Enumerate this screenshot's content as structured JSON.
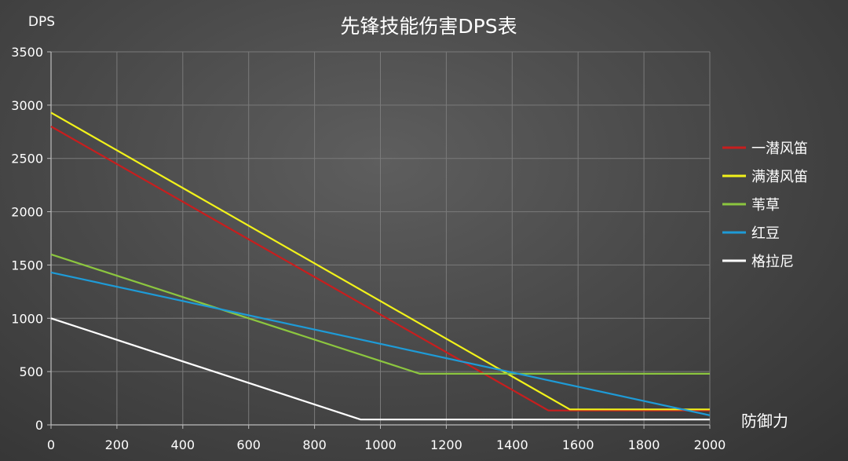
{
  "chart_data": {
    "type": "line",
    "title": "先锋技能伤害DPS表",
    "ylabel": "DPS",
    "xlabel": "防御力",
    "xlim": [
      0,
      2000
    ],
    "ylim": [
      0,
      3500
    ],
    "x_ticks": [
      0,
      200,
      400,
      600,
      800,
      1000,
      1200,
      1400,
      1600,
      1800,
      2000
    ],
    "y_ticks": [
      0,
      500,
      1000,
      1500,
      2000,
      2500,
      3000,
      3500
    ],
    "grid": true,
    "legend_position": "right",
    "series": [
      {
        "name": "一潜风笛",
        "color": "#c81e1e",
        "points": [
          [
            0,
            2800
          ],
          [
            1510,
            135
          ],
          [
            2000,
            135
          ]
        ]
      },
      {
        "name": "满潜风笛",
        "color": "#f2f21a",
        "points": [
          [
            0,
            2930
          ],
          [
            1575,
            145
          ],
          [
            2000,
            145
          ]
        ]
      },
      {
        "name": "苇草",
        "color": "#8cc63f",
        "points": [
          [
            0,
            1600
          ],
          [
            1120,
            480
          ],
          [
            2000,
            480
          ]
        ]
      },
      {
        "name": "红豆",
        "color": "#1e9bd7",
        "points": [
          [
            0,
            1430
          ],
          [
            2000,
            90
          ]
        ]
      },
      {
        "name": "格拉尼",
        "color": "#ffffff",
        "points": [
          [
            0,
            1000
          ],
          [
            940,
            50
          ],
          [
            2000,
            50
          ]
        ]
      }
    ]
  }
}
